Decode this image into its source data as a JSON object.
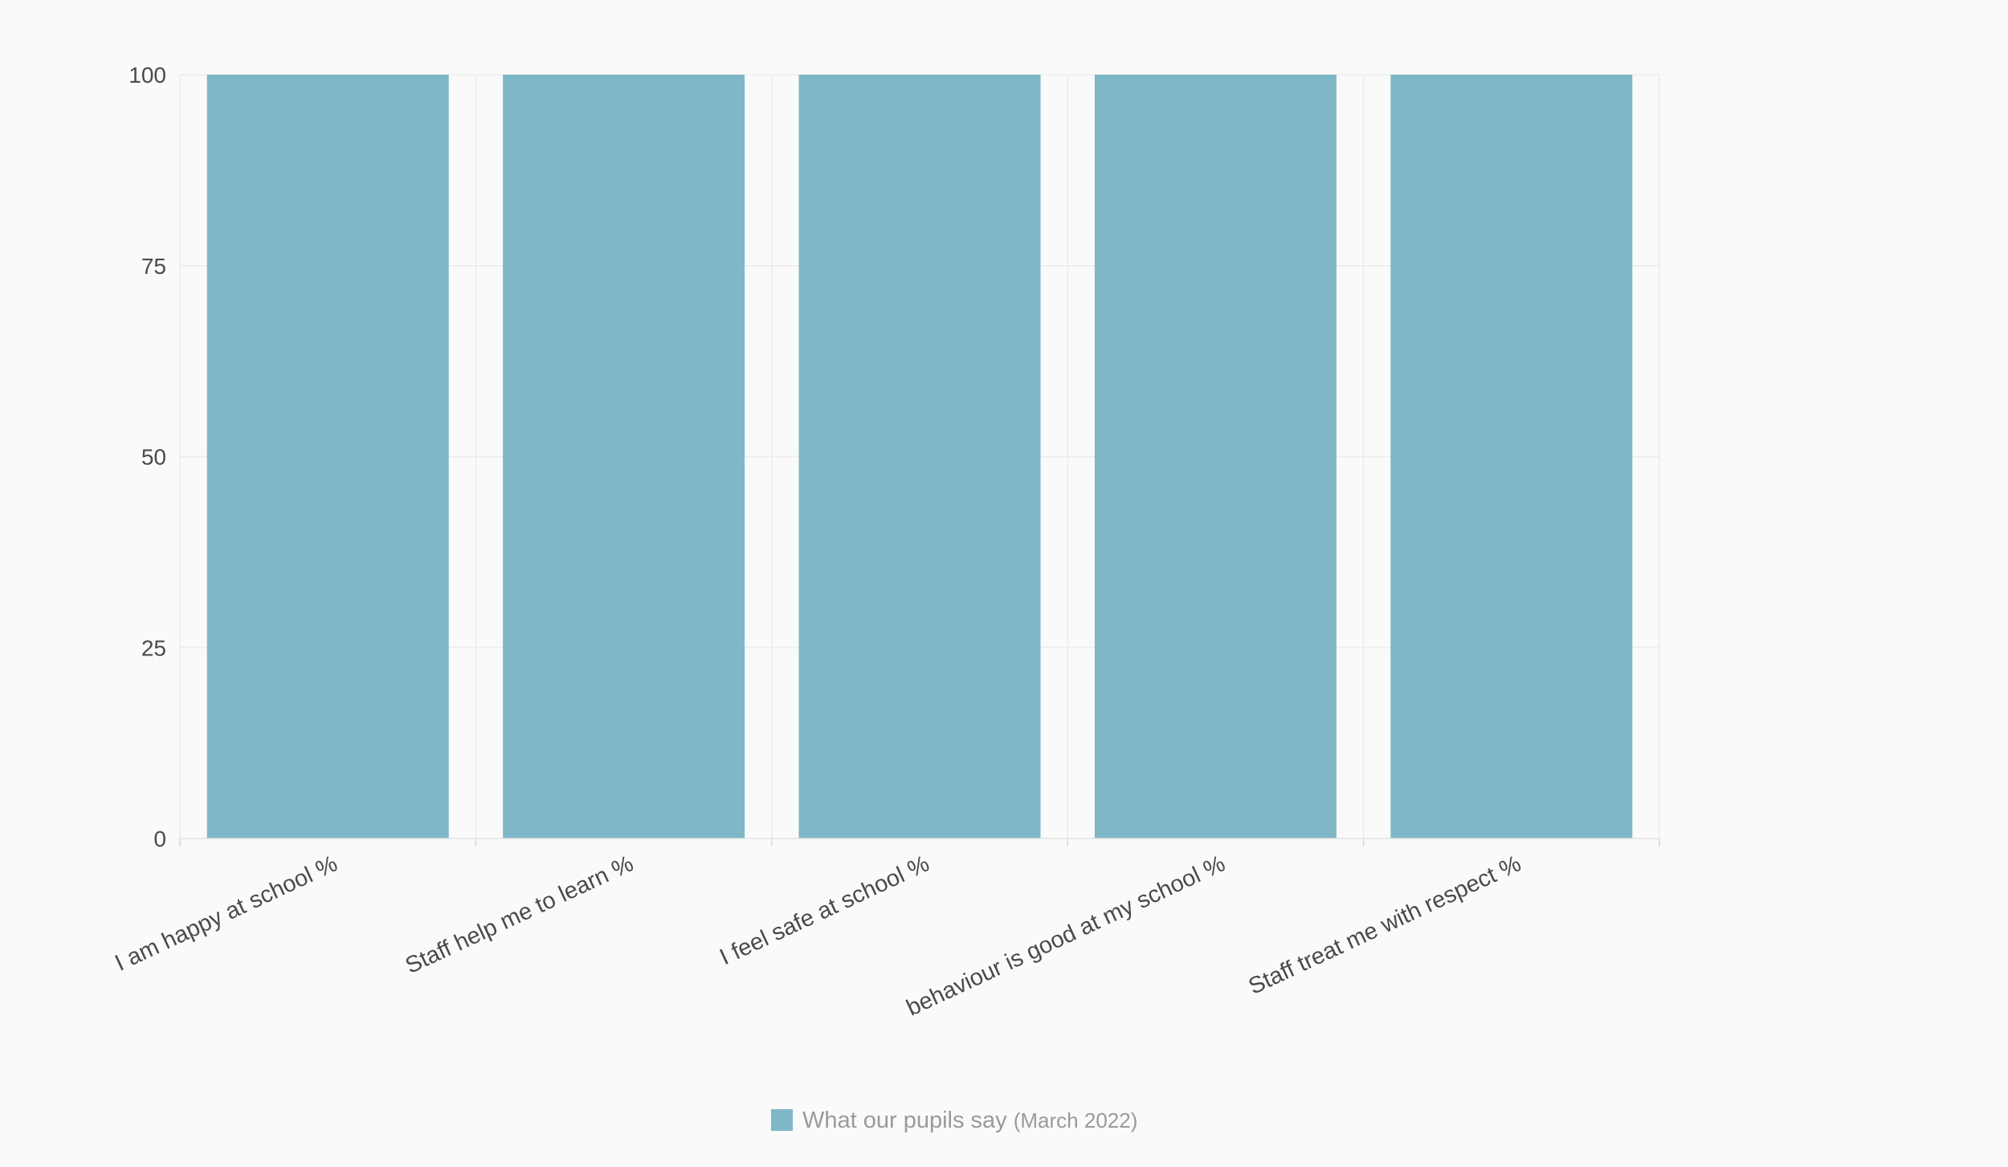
{
  "chart_data": {
    "type": "bar",
    "categories": [
      "I am happy at school  %",
      "Staff help me to learn %",
      "I feel safe at school %",
      "behaviour is good at my school %",
      "Staff treat me with respect %"
    ],
    "series": [
      {
        "name": "What our pupils say",
        "name_suffix": "(March 2022)",
        "values": [
          100,
          100,
          100,
          100,
          100
        ],
        "color": "#7fb7c8"
      }
    ],
    "ylim": [
      0,
      100
    ],
    "yticks": [
      0,
      25,
      50,
      75,
      100
    ],
    "grid": true,
    "legend_position": "bottom-center"
  }
}
